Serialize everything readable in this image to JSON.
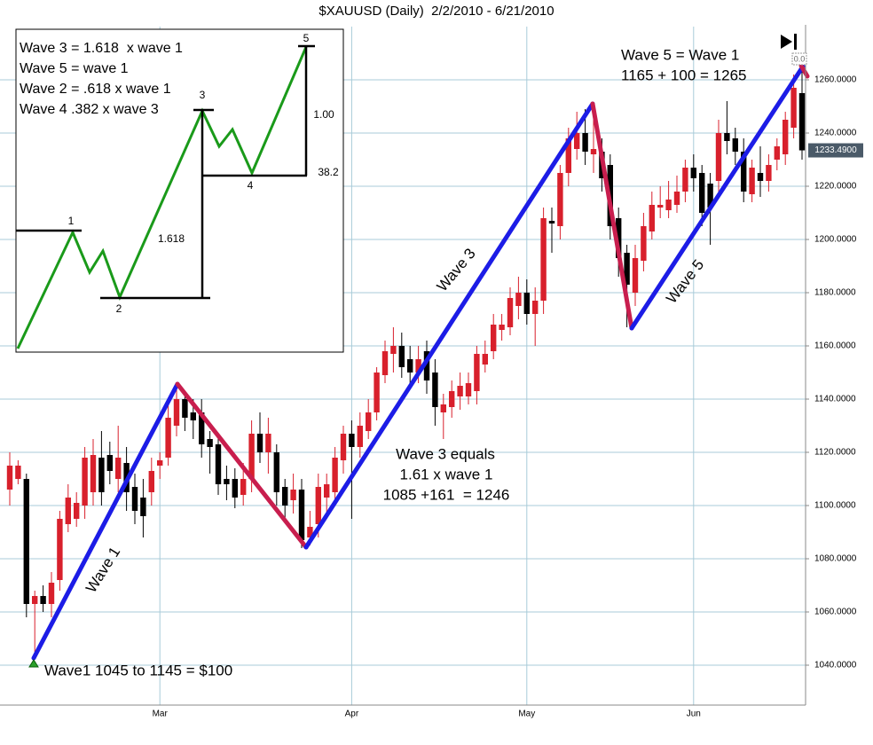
{
  "chart_data": {
    "type": "candlestick",
    "title": "$XAUUSD (Daily)  2/2/2010 - 6/21/2010",
    "categories": [
      null,
      null,
      null,
      null,
      null,
      null,
      null,
      null,
      null,
      null,
      null,
      null,
      null,
      null,
      null,
      null,
      null,
      null,
      "Mar",
      null,
      null,
      null,
      null,
      null,
      null,
      null,
      null,
      null,
      null,
      null,
      null,
      null,
      null,
      null,
      null,
      null,
      null,
      null,
      null,
      null,
      null,
      "Apr",
      null,
      null,
      null,
      null,
      null,
      null,
      null,
      null,
      null,
      null,
      null,
      null,
      null,
      null,
      null,
      null,
      null,
      null,
      null,
      null,
      "May",
      null,
      null,
      null,
      null,
      null,
      null,
      null,
      null,
      null,
      null,
      null,
      null,
      null,
      null,
      null,
      null,
      null,
      null,
      null,
      "Jun",
      null,
      null,
      null,
      null,
      null,
      null,
      null,
      null,
      null,
      null,
      null,
      null,
      null
    ],
    "open": [
      1106,
      1110,
      1110,
      1063,
      1066,
      1063,
      1072,
      1093,
      1095,
      1100,
      1105,
      1118,
      1119,
      1110,
      1116,
      1107,
      1103,
      1105,
      1115,
      1118,
      1130,
      1140,
      1135,
      1135,
      1125,
      1123,
      1110,
      1110,
      1104,
      1110,
      1127,
      1120,
      1120,
      1107,
      1102,
      1106,
      1088,
      1093,
      1103,
      1105,
      1117,
      1127,
      1122,
      1128,
      1135,
      1149,
      1157,
      1160,
      1155,
      1150,
      1158,
      1150,
      1135,
      1137,
      1141,
      1141,
      1143,
      1153,
      1158,
      1166,
      1167,
      1175,
      1180,
      1172,
      1177,
      1207,
      1205,
      1225,
      1234,
      1240,
      1232,
      1233,
      1228,
      1208,
      1195,
      1180,
      1192,
      1203,
      1212,
      1211,
      1213,
      1218,
      1227,
      1225,
      1221,
      1222,
      1240,
      1238,
      1233,
      1217,
      1225,
      1222,
      1230,
      1232,
      1242,
      1255
    ],
    "high": [
      1120,
      1117,
      1112,
      1068,
      1070,
      1075,
      1098,
      1108,
      1105,
      1122,
      1125,
      1128,
      1124,
      1130,
      1122,
      1112,
      1110,
      1118,
      1120,
      1138,
      1145,
      1143,
      1140,
      1140,
      1128,
      1126,
      1115,
      1114,
      1116,
      1132,
      1135,
      1133,
      1123,
      1110,
      1112,
      1110,
      1098,
      1112,
      1112,
      1122,
      1130,
      1132,
      1135,
      1140,
      1152,
      1162,
      1167,
      1165,
      1160,
      1160,
      1162,
      1155,
      1142,
      1147,
      1150,
      1150,
      1160,
      1162,
      1172,
      1172,
      1182,
      1186,
      1185,
      1182,
      1212,
      1212,
      1228,
      1242,
      1248,
      1249,
      1250,
      1238,
      1232,
      1212,
      1198,
      1198,
      1210,
      1218,
      1220,
      1222,
      1224,
      1230,
      1232,
      1228,
      1225,
      1245,
      1252,
      1242,
      1238,
      1230,
      1235,
      1232,
      1238,
      1248,
      1262,
      1265
    ],
    "low": [
      1100,
      1108,
      1058,
      1045,
      1060,
      1058,
      1068,
      1090,
      1092,
      1095,
      1100,
      1100,
      1108,
      1105,
      1098,
      1093,
      1088,
      1100,
      1110,
      1115,
      1126,
      1128,
      1125,
      1118,
      1112,
      1104,
      1102,
      1099,
      1100,
      1105,
      1116,
      1112,
      1100,
      1094,
      1097,
      1084,
      1085,
      1088,
      1095,
      1100,
      1112,
      1095,
      1118,
      1125,
      1132,
      1146,
      1150,
      1148,
      1145,
      1146,
      1142,
      1130,
      1125,
      1133,
      1136,
      1138,
      1138,
      1150,
      1155,
      1162,
      1164,
      1170,
      1168,
      1160,
      1172,
      1195,
      1200,
      1220,
      1230,
      1228,
      1225,
      1218,
      1200,
      1186,
      1167,
      1175,
      1188,
      1200,
      1208,
      1208,
      1210,
      1214,
      1218,
      1205,
      1198,
      1218,
      1232,
      1228,
      1214,
      1214,
      1216,
      1218,
      1226,
      1228,
      1238,
      1230
    ],
    "close": [
      1115,
      1115,
      1063,
      1066,
      1063,
      1071,
      1095,
      1103,
      1101,
      1118,
      1119,
      1105,
      1113,
      1118,
      1105,
      1098,
      1096,
      1113,
      1117,
      1133,
      1140,
      1133,
      1132,
      1123,
      1122,
      1108,
      1108,
      1103,
      1110,
      1127,
      1120,
      1127,
      1105,
      1100,
      1106,
      1087,
      1092,
      1107,
      1108,
      1118,
      1127,
      1122,
      1130,
      1135,
      1150,
      1158,
      1160,
      1152,
      1150,
      1155,
      1147,
      1137,
      1138,
      1143,
      1145,
      1146,
      1157,
      1157,
      1168,
      1168,
      1178,
      1180,
      1172,
      1177,
      1208,
      1206,
      1225,
      1238,
      1240,
      1233,
      1234,
      1223,
      1205,
      1193,
      1183,
      1193,
      1205,
      1213,
      1213,
      1215,
      1218,
      1227,
      1223,
      1210,
      1212,
      1240,
      1237,
      1233,
      1218,
      1227,
      1222,
      1228,
      1235,
      1245,
      1257,
      1233.49
    ],
    "up_color": "#d8202c",
    "down_color": "#000000",
    "ylim": [
      1025,
      1280
    ],
    "yticks": [
      {
        "value": 1040,
        "label": "1040.0000"
      },
      {
        "value": 1060,
        "label": "1060.0000"
      },
      {
        "value": 1080,
        "label": "1080.0000"
      },
      {
        "value": 1100,
        "label": "1100.0000"
      },
      {
        "value": 1120,
        "label": "1120.0000"
      },
      {
        "value": 1140,
        "label": "1140.0000"
      },
      {
        "value": 1160,
        "label": "1160.0000"
      },
      {
        "value": 1180,
        "label": "1180.0000"
      },
      {
        "value": 1200,
        "label": "1200.0000"
      },
      {
        "value": 1220,
        "label": "1220.0000"
      },
      {
        "value": 1240,
        "label": "1240.0000"
      },
      {
        "value": 1260,
        "label": "1260.0000"
      }
    ],
    "grid": true,
    "last_price": {
      "value": 1233.49,
      "label": "1233.4900"
    },
    "annotations": [
      "Wave 1",
      "Wave 3",
      "Wave 5",
      "Wave1 1045 to 1145 = $100",
      "Wave 3 equals",
      "1.61 x wave 1",
      "1085 +161  = 1246",
      "Wave 5 = Wave 1",
      "1165 + 100 = 1265",
      "0.0"
    ],
    "inset": {
      "lines": [
        "Wave 3 = 1.618  x wave 1",
        "Wave 5 = wave 1",
        "Wave 2 = .618 x wave 1",
        "Wave 4 .382 x wave 3"
      ],
      "points": [
        "1",
        "2",
        "3",
        "4",
        "5"
      ],
      "ratios": [
        "1.618",
        "1.00",
        "38.2"
      ]
    }
  }
}
